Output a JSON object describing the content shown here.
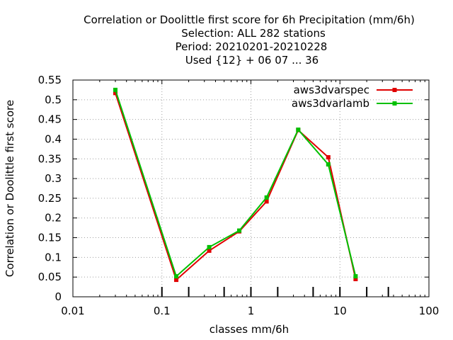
{
  "chart_data": {
    "type": "line",
    "title_lines": [
      "Correlation or Doolittle first score  for 6h Precipitation (mm/6h)",
      "Selection: ALL    282 stations",
      "Period: 20210201-20210228",
      "Used {12} + 06 07 ... 36"
    ],
    "xlabel": "classes mm/6h",
    "ylabel": "Correlation or Doolittle first score",
    "x_scale": "log",
    "xlim": [
      0.01,
      100
    ],
    "ylim": [
      0,
      0.55
    ],
    "x_ticks": [
      0.01,
      0.1,
      1,
      10,
      100
    ],
    "x_tick_labels": [
      "0.01",
      "0.1",
      "1",
      "10",
      "100"
    ],
    "y_ticks": [
      0,
      0.05,
      0.1,
      0.15,
      0.2,
      0.25,
      0.3,
      0.35,
      0.4,
      0.45,
      0.5,
      0.55
    ],
    "y_tick_labels": [
      "0",
      "0.05",
      "0.1",
      "0.15",
      "0.2",
      "0.25",
      "0.3",
      "0.35",
      "0.4",
      "0.45",
      "0.5",
      "0.55"
    ],
    "class_ticks": [
      0.1,
      0.2,
      0.5,
      1,
      2,
      5,
      10,
      20,
      35
    ],
    "grid": true,
    "legend_position": "top-right",
    "series": [
      {
        "name": "aws3dvarspec",
        "color": "#e00000",
        "x": [
          0.03,
          0.145,
          0.34,
          0.74,
          1.5,
          3.4,
          7.4,
          15
        ],
        "y": [
          0.517,
          0.043,
          0.117,
          0.166,
          0.242,
          0.423,
          0.354,
          0.045
        ]
      },
      {
        "name": "aws3dvarlamb",
        "color": "#00c000",
        "x": [
          0.03,
          0.145,
          0.34,
          0.74,
          1.5,
          3.4,
          7.4,
          15
        ],
        "y": [
          0.525,
          0.052,
          0.126,
          0.168,
          0.252,
          0.424,
          0.336,
          0.052
        ]
      }
    ]
  }
}
